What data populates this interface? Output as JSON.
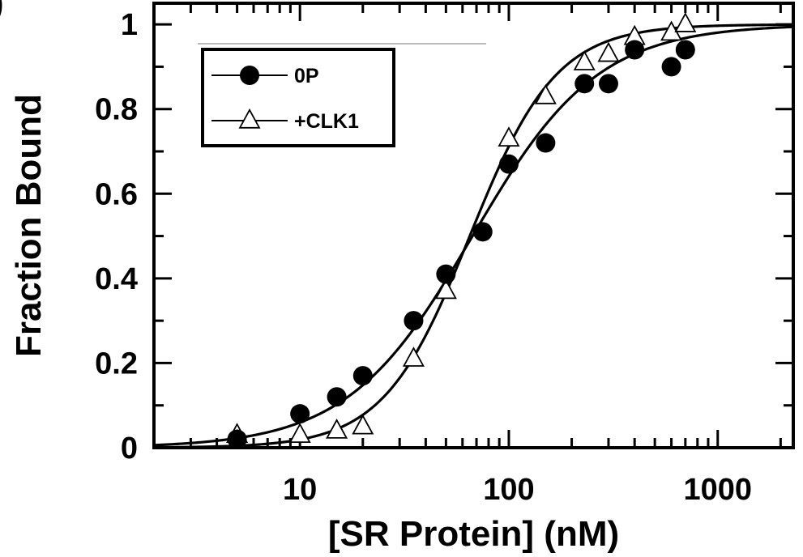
{
  "chart_data": {
    "type": "scatter",
    "xlabel": "[SR Protein] (nM)",
    "ylabel": "Fraction Bound",
    "xscale": "log",
    "xlim": [
      2,
      2300
    ],
    "ylim": [
      0,
      1.05
    ],
    "x_ticks": [
      10,
      100,
      1000
    ],
    "y_ticks": [
      0,
      0.2,
      0.4,
      0.6,
      0.8,
      1
    ],
    "x_tick_labels": [
      "10",
      "100",
      "1000"
    ],
    "y_tick_labels": [
      "0",
      "0.2",
      "0.4",
      "0.6",
      "0.8",
      "1"
    ],
    "grid": false,
    "legend": "top-left",
    "series": [
      {
        "name": "0P",
        "marker": "filled-circle",
        "color": "#000000",
        "points": [
          [
            5,
            0.02
          ],
          [
            10,
            0.08
          ],
          [
            15,
            0.12
          ],
          [
            20,
            0.17
          ],
          [
            35,
            0.3
          ],
          [
            50,
            0.41
          ],
          [
            75,
            0.51
          ],
          [
            100,
            0.67
          ],
          [
            150,
            0.72
          ],
          [
            230,
            0.86
          ],
          [
            300,
            0.86
          ],
          [
            400,
            0.94
          ],
          [
            600,
            0.9
          ],
          [
            700,
            0.94
          ]
        ],
        "fit": {
          "kd": 67,
          "hill": 1.45
        }
      },
      {
        "name": "+CLK1",
        "marker": "open-triangle",
        "color": "#000000",
        "points": [
          [
            5,
            0.03
          ],
          [
            10,
            0.03
          ],
          [
            15,
            0.04
          ],
          [
            20,
            0.05
          ],
          [
            35,
            0.21
          ],
          [
            50,
            0.37
          ],
          [
            100,
            0.73
          ],
          [
            150,
            0.83
          ],
          [
            230,
            0.91
          ],
          [
            300,
            0.93
          ],
          [
            400,
            0.97
          ],
          [
            600,
            0.98
          ],
          [
            700,
            1.0
          ]
        ],
        "fit": {
          "kd": 65,
          "hill": 2.1
        }
      }
    ]
  }
}
